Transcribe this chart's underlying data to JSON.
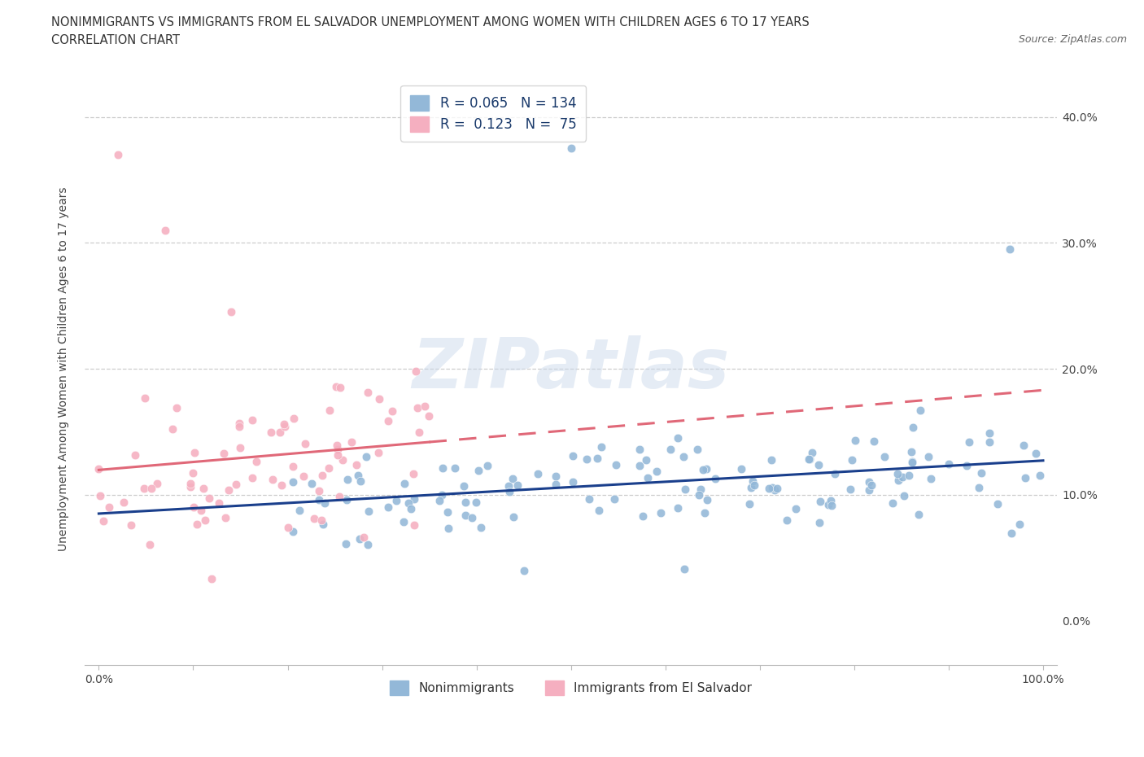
{
  "title_line1": "NONIMMIGRANTS VS IMMIGRANTS FROM EL SALVADOR UNEMPLOYMENT AMONG WOMEN WITH CHILDREN AGES 6 TO 17 YEARS",
  "title_line2": "CORRELATION CHART",
  "source": "Source: ZipAtlas.com",
  "ylabel": "Unemployment Among Women with Children Ages 6 to 17 years",
  "watermark": "ZIPatlas",
  "legend_label1": "Nonimmigrants",
  "legend_label2": "Immigrants from El Salvador",
  "R1": 0.065,
  "N1": 134,
  "R2": 0.123,
  "N2": 75,
  "blue_scatter_color": "#93b8d8",
  "pink_scatter_color": "#f5afc0",
  "blue_line_color": "#1a3f8c",
  "pink_line_color": "#e06878",
  "text_color": "#1a3a6b",
  "grid_color": "#cccccc",
  "title_color": "#333333",
  "ytick_vals": [
    0.0,
    0.1,
    0.2,
    0.3,
    0.4
  ],
  "ytick_labels": [
    "0.0%",
    "10.0%",
    "20.0%",
    "30.0%",
    "40.0%"
  ],
  "xlim": [
    -0.015,
    1.015
  ],
  "ylim": [
    -0.035,
    0.435
  ]
}
